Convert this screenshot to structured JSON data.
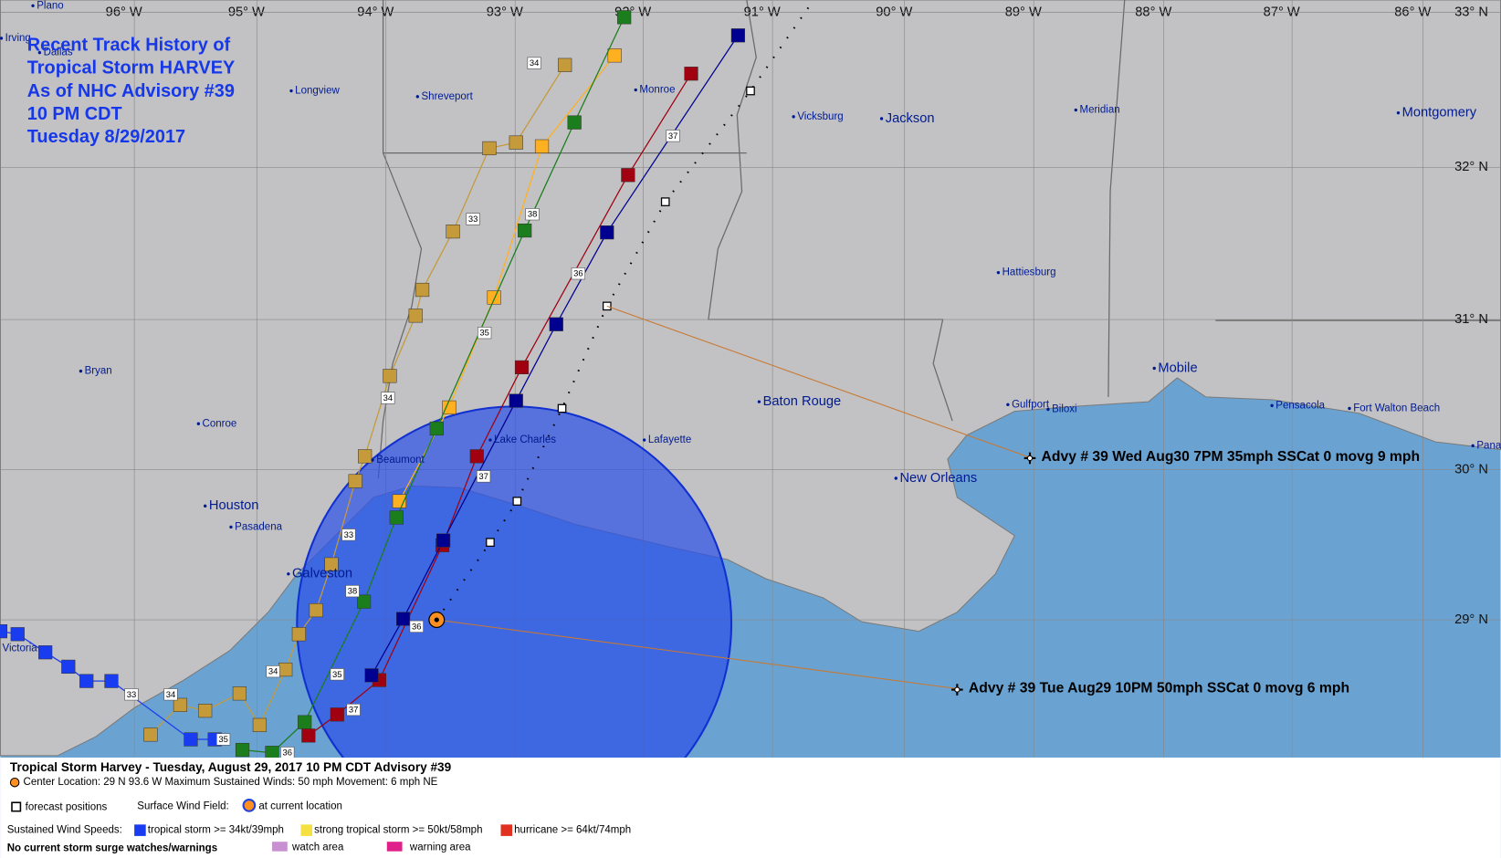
{
  "title_block": {
    "lines": [
      "Recent Track History of",
      "Tropical Storm HARVEY",
      "As of NHC Advisory #39",
      "10 PM CDT",
      "Tuesday 8/29/2017"
    ]
  },
  "longitudes": [
    "96° W",
    "95° W",
    "94° W",
    "93° W",
    "92° W",
    "91° W",
    "90° W",
    "89° W",
    "88° W",
    "87° W",
    "86° W"
  ],
  "latitudes": [
    "33° N",
    "32° N",
    "31° N",
    "30° N",
    "29° N"
  ],
  "cities": [
    "Plano",
    "Irving",
    "Dallas",
    "Longview",
    "Shreveport",
    "Monroe",
    "Vicksburg",
    "Jackson",
    "Meridian",
    "Montgomery",
    "Hattiesburg",
    "Mobile",
    "Gulfport",
    "Biloxi",
    "Pensacola",
    "Fort Walton Beach",
    "Pana",
    "Baton Rouge",
    "Lafayette",
    "Lake Charles",
    "Beaumont",
    "New Orleans",
    "Houston",
    "Pasadena",
    "Galveston",
    "Victoria",
    "Bryan",
    "Conroe"
  ],
  "track_labels": [
    "34",
    "33",
    "38",
    "36",
    "37",
    "35",
    "34",
    "37",
    "33",
    "38",
    "36",
    "34",
    "35",
    "37",
    "33",
    "34",
    "35",
    "36"
  ],
  "annotations": [
    "Advy # 39 Wed Aug30 7PM  35mph SSCat 0 movg 9 mph",
    "Advy # 39 Tue Aug29 10PM  50mph SSCat 0 movg 6 mph"
  ],
  "legend": {
    "title": "Tropical Storm Harvey  -  Tuesday, August 29, 2017  10 PM CDT   Advisory #39",
    "center": "Center Location: 29 N  93.6 W   Maximum Sustained Winds: 50 mph   Movement: 6 mph NE",
    "forecast": "forecast positions",
    "wind_field": "Surface Wind Field:",
    "current": "at current location",
    "speeds": "Sustained Wind Speeds:",
    "ts": "tropical storm >= 34kt/39mph",
    "sts": "strong tropical storm >= 50kt/58mph",
    "hurricane": "hurricane >= 64kt/74mph",
    "surge": "No current storm surge watches/warnings",
    "watch": "watch area",
    "warning": "warning area"
  }
}
